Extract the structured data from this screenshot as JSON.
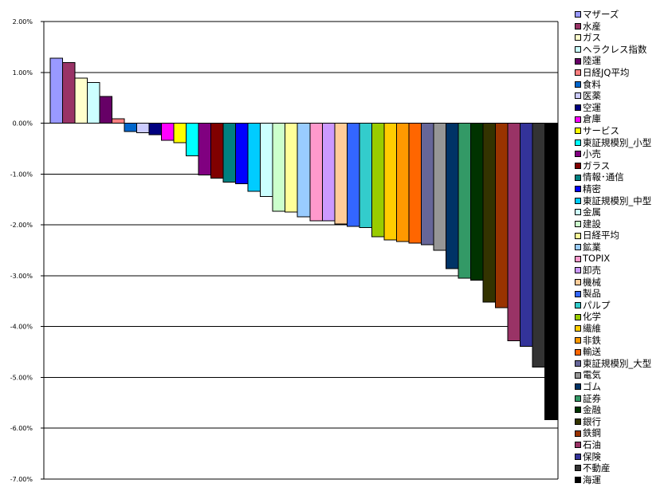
{
  "chart_data": {
    "type": "bar",
    "title": "",
    "xlabel": "",
    "ylabel": "",
    "ylim": [
      -7,
      2
    ],
    "y_ticks": [
      "2.00%",
      "1.00%",
      "0.00%",
      "-1.00%",
      "-2.00%",
      "-3.00%",
      "-4.00%",
      "-5.00%",
      "-6.00%",
      "-7.00%"
    ],
    "y_tick_values": [
      2,
      1,
      0,
      -1,
      -2,
      -3,
      -4,
      -5,
      -6,
      -7
    ],
    "unit": "%",
    "grid": true,
    "legend_placement": "right",
    "categories": [
      "マザーズ",
      "水産",
      "ガス",
      "ヘラクレス指数",
      "陸運",
      "日経JQ平均",
      "食料",
      "医薬",
      "空運",
      "倉庫",
      "サービス",
      "東証規模別_小型",
      "小売",
      "ガラス",
      "情報･通信",
      "精密",
      "東証規模別_中型",
      "金属",
      "建設",
      "日経平均",
      "鉱業",
      "TOPIX",
      "卸売",
      "機械",
      "製品",
      "パルプ",
      "化学",
      "繊維",
      "非鉄",
      "輸送",
      "東証規模別_大型",
      "電気",
      "ゴム",
      "証券",
      "金融",
      "銀行",
      "鉄鋼",
      "石油",
      "保険",
      "不動産",
      "海運"
    ],
    "values": [
      1.28,
      1.19,
      0.89,
      0.8,
      0.53,
      0.09,
      -0.16,
      -0.19,
      -0.23,
      -0.34,
      -0.38,
      -0.64,
      -1.02,
      -1.08,
      -1.16,
      -1.19,
      -1.34,
      -1.44,
      -1.73,
      -1.75,
      -1.84,
      -1.92,
      -1.92,
      -1.98,
      -2.03,
      -2.05,
      -2.23,
      -2.3,
      -2.33,
      -2.36,
      -2.39,
      -2.5,
      -2.86,
      -3.05,
      -3.09,
      -3.52,
      -3.63,
      -4.28,
      -4.39,
      -4.8,
      -5.83
    ],
    "colors": [
      "#9999FF",
      "#993366",
      "#FFFFCC",
      "#CCFFFF",
      "#660066",
      "#FF8080",
      "#0066CC",
      "#CCCCFF",
      "#000080",
      "#FF00FF",
      "#FFFF00",
      "#00FFFF",
      "#800080",
      "#800000",
      "#008080",
      "#0000FF",
      "#00CCFF",
      "#CCFFFF",
      "#CCFFCC",
      "#FFFF99",
      "#99CCFF",
      "#FF99CC",
      "#CC99FF",
      "#FFCC99",
      "#3366FF",
      "#33CCCC",
      "#99CC00",
      "#FFCC00",
      "#FF9900",
      "#FF6600",
      "#666699",
      "#969696",
      "#003366",
      "#339966",
      "#003300",
      "#333300",
      "#993300",
      "#993366",
      "#333399",
      "#333333",
      "#000000"
    ]
  }
}
